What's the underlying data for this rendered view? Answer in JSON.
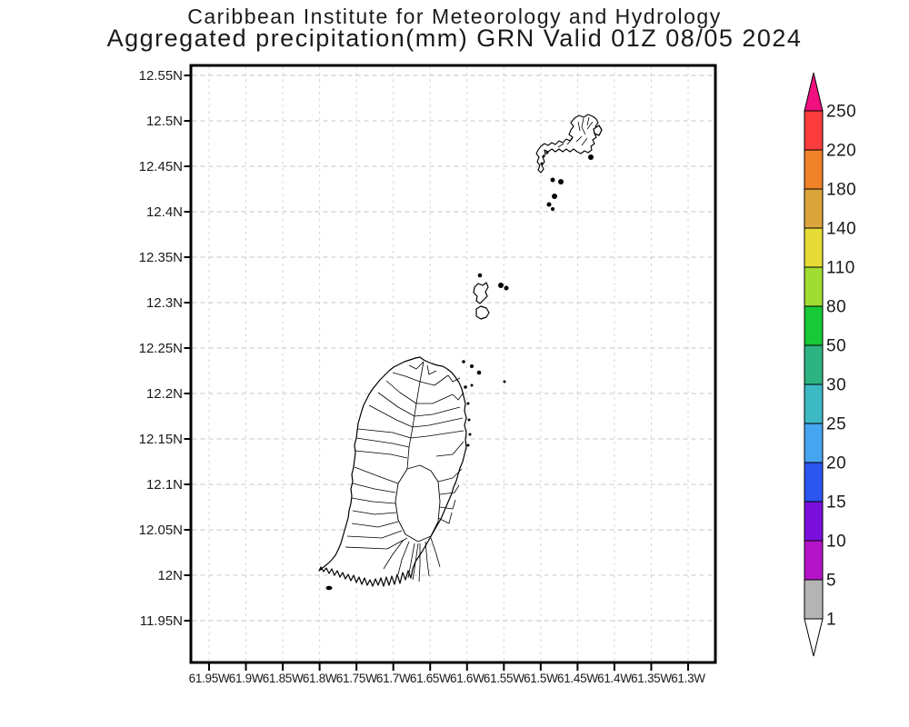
{
  "title": {
    "line1": "Caribbean Institute for Meteorology and Hydrology",
    "line2": "Aggregated precipitation(mm) GRN Valid 01Z 08/05 2024"
  },
  "map": {
    "lat_ticks": [
      "12.55N",
      "12.5N",
      "12.45N",
      "12.4N",
      "12.35N",
      "12.3N",
      "12.25N",
      "12.2N",
      "12.15N",
      "12.1N",
      "12.05N",
      "12N",
      "11.95N"
    ],
    "lon_ticks": [
      "61.95W",
      "61.9W",
      "61.85W",
      "61.8W",
      "61.75W",
      "61.7W",
      "61.65W",
      "61.6W",
      "61.55W",
      "61.5W",
      "61.45W",
      "61.4W",
      "61.35W",
      "61.3W"
    ],
    "grid_color": "#c6c6c6",
    "border_color": "#000000"
  },
  "colorbar": {
    "labels": [
      "250",
      "220",
      "180",
      "140",
      "110",
      "80",
      "50",
      "30",
      "25",
      "20",
      "15",
      "10",
      "5",
      "1"
    ],
    "segment_colors": [
      "#FA3C3C",
      "#F08228",
      "#DCA53C",
      "#E6DC37",
      "#A0DC32",
      "#17C837",
      "#2EB482",
      "#3CB9C3",
      "#46A5F0",
      "#2D55F0",
      "#7A0FDC",
      "#B414C8",
      "#B4B4B4"
    ],
    "arrow_top_color": "#F01080",
    "arrow_bottom_color": "#FFFFFF"
  }
}
